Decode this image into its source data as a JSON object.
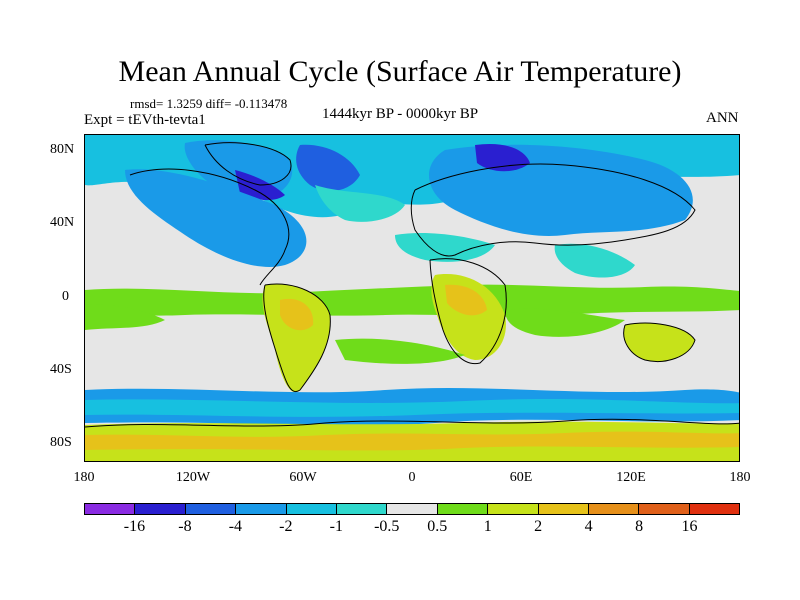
{
  "title": "Mean Annual Cycle (Surface Air Temperature)",
  "stats": "rmsd= 1.3259 diff= -0.113478",
  "experiment": "Expt = tEVth-tevta1",
  "period": "1444kyr BP - 0000kyr BP",
  "season": "ANN",
  "lat_labels": [
    "80N",
    "40N",
    "0",
    "40S",
    "80S"
  ],
  "lon_labels": [
    "180",
    "120W",
    "60W",
    "0",
    "60E",
    "120E",
    "180"
  ],
  "colorbar": {
    "labels": [
      "-16",
      "-8",
      "-4",
      "-2",
      "-1",
      "-0.5",
      "0.5",
      "1",
      "2",
      "4",
      "8",
      "16"
    ],
    "colors": [
      "#8a2be2",
      "#2a1fd0",
      "#1f5fe0",
      "#1a9ae8",
      "#17c0e0",
      "#2fd8cc",
      "#e6e6e6",
      "#6fdc1a",
      "#c6e21a",
      "#e6c21a",
      "#e6901a",
      "#e0601a",
      "#e0300f"
    ]
  },
  "map": {
    "ocean_color": "#e6e6e6",
    "coast_color": "#000000"
  }
}
